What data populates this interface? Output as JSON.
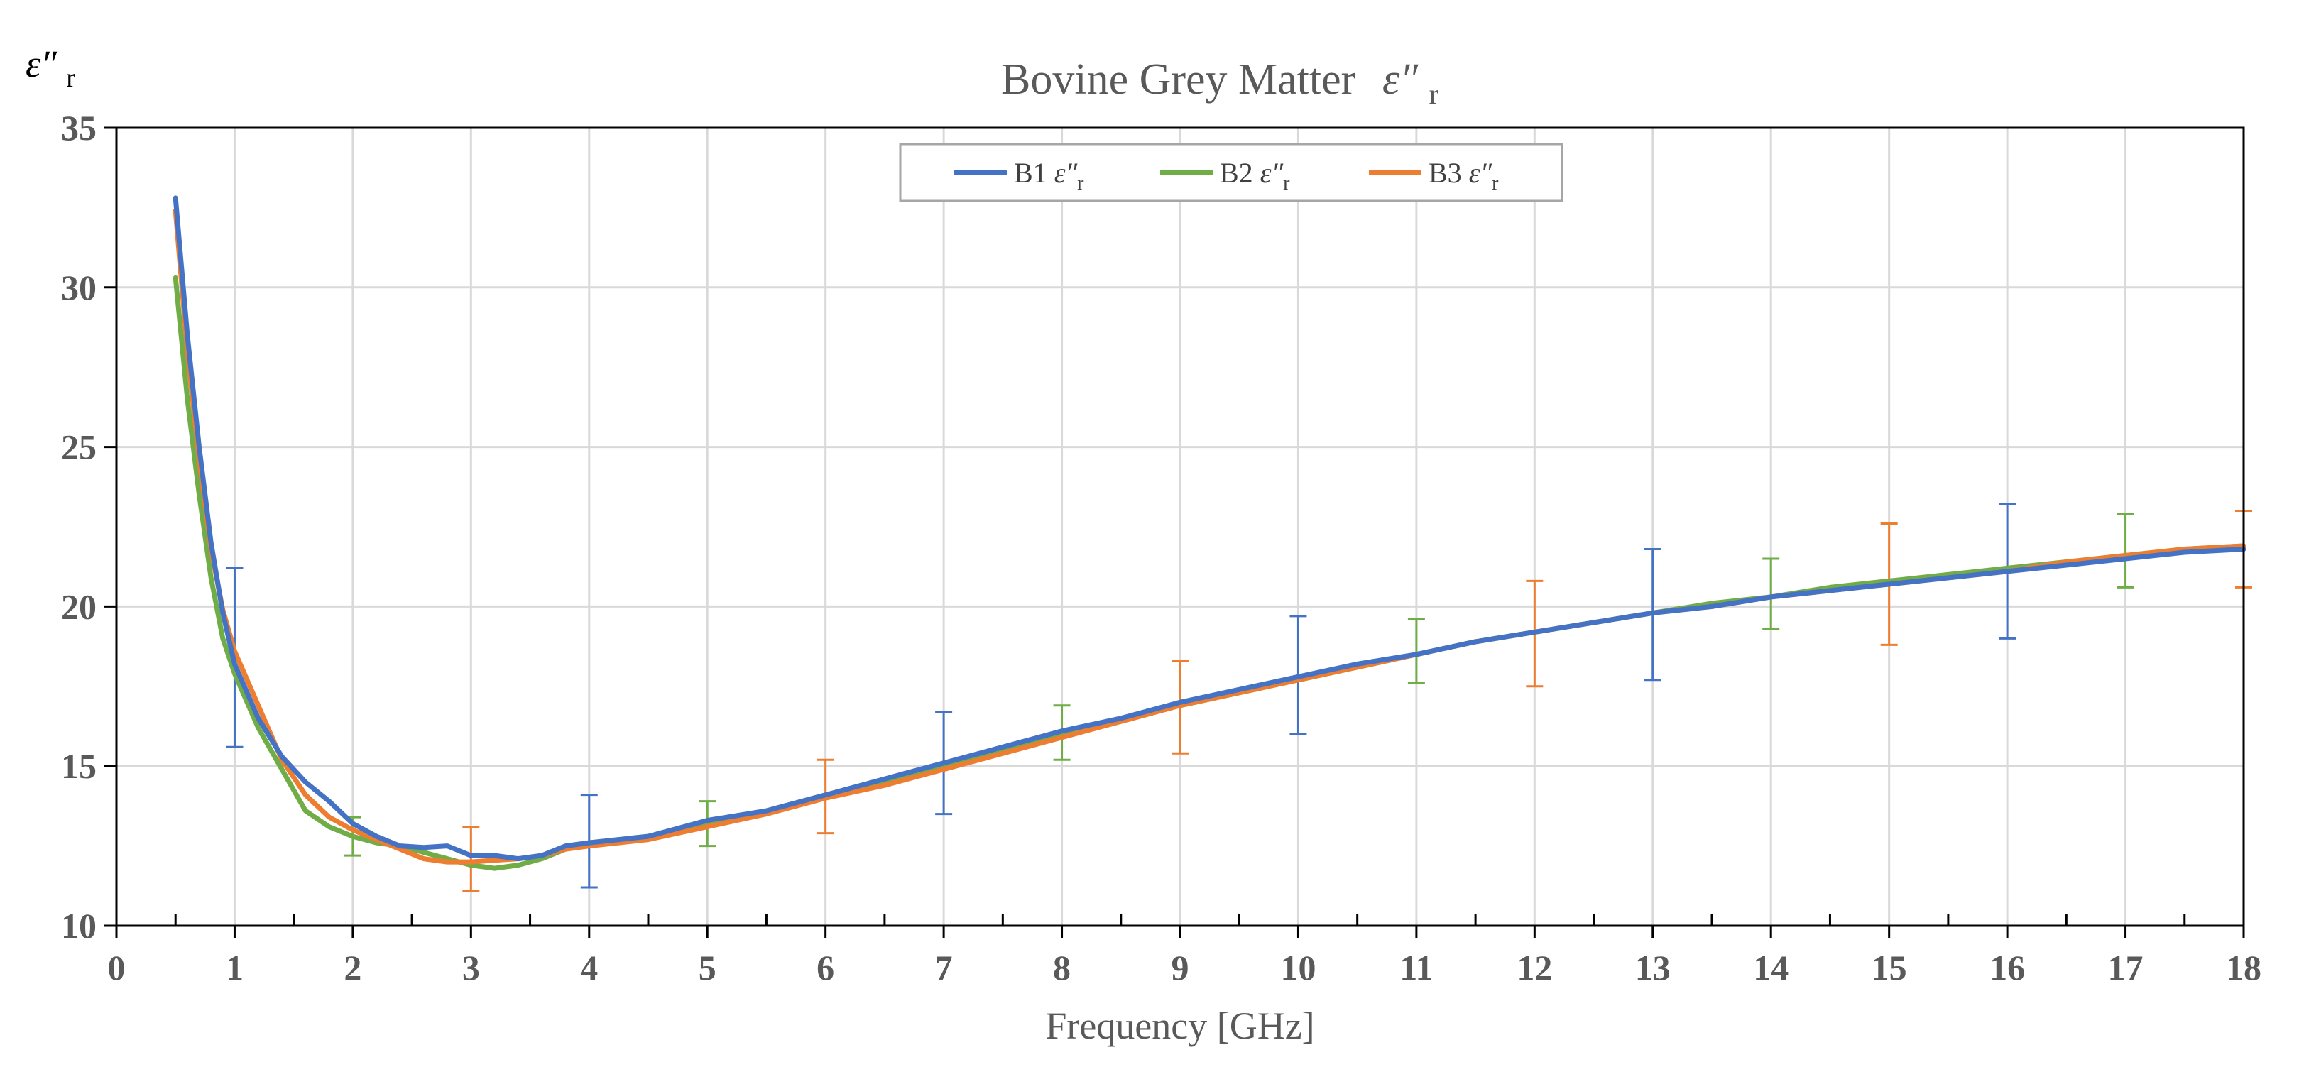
{
  "chart_data": {
    "type": "line",
    "title": "Bovine Grey Matter",
    "title_symbol": "ε″",
    "title_subscript": "r",
    "ylabel_symbol": "ε″",
    "ylabel_subscript": "r",
    "xlabel": "Frequency [GHz]",
    "xlim": [
      0,
      18
    ],
    "ylim": [
      10,
      35
    ],
    "x_ticks": [
      0,
      1,
      2,
      3,
      4,
      5,
      6,
      7,
      8,
      9,
      10,
      11,
      12,
      13,
      14,
      15,
      16,
      17,
      18
    ],
    "y_ticks": [
      10,
      15,
      20,
      25,
      30,
      35
    ],
    "x_minor_step": 0.5,
    "grid": true,
    "legend_position": "top-center",
    "series": [
      {
        "name": "B1 ε″r",
        "legend_label": "B1",
        "color": "#4472C4",
        "points": [
          [
            0.5,
            32.8
          ],
          [
            0.6,
            28.5
          ],
          [
            0.7,
            25.0
          ],
          [
            0.8,
            22.0
          ],
          [
            0.9,
            19.8
          ],
          [
            1.0,
            18.2
          ],
          [
            1.2,
            16.5
          ],
          [
            1.4,
            15.3
          ],
          [
            1.6,
            14.5
          ],
          [
            1.8,
            13.9
          ],
          [
            2.0,
            13.2
          ],
          [
            2.2,
            12.8
          ],
          [
            2.4,
            12.5
          ],
          [
            2.6,
            12.45
          ],
          [
            2.8,
            12.5
          ],
          [
            3.0,
            12.2
          ],
          [
            3.2,
            12.2
          ],
          [
            3.4,
            12.1
          ],
          [
            3.6,
            12.2
          ],
          [
            3.8,
            12.5
          ],
          [
            4.0,
            12.6
          ],
          [
            4.5,
            12.8
          ],
          [
            5.0,
            13.3
          ],
          [
            5.5,
            13.6
          ],
          [
            6.0,
            14.1
          ],
          [
            6.5,
            14.6
          ],
          [
            7.0,
            15.1
          ],
          [
            7.5,
            15.6
          ],
          [
            8.0,
            16.1
          ],
          [
            8.5,
            16.5
          ],
          [
            9.0,
            17.0
          ],
          [
            9.5,
            17.4
          ],
          [
            10.0,
            17.8
          ],
          [
            10.5,
            18.2
          ],
          [
            11.0,
            18.5
          ],
          [
            11.5,
            18.9
          ],
          [
            12.0,
            19.2
          ],
          [
            12.5,
            19.5
          ],
          [
            13.0,
            19.8
          ],
          [
            13.5,
            20.0
          ],
          [
            14.0,
            20.3
          ],
          [
            14.5,
            20.5
          ],
          [
            15.0,
            20.7
          ],
          [
            15.5,
            20.9
          ],
          [
            16.0,
            21.1
          ],
          [
            16.5,
            21.3
          ],
          [
            17.0,
            21.5
          ],
          [
            17.5,
            21.7
          ],
          [
            18.0,
            21.8
          ]
        ],
        "error_bars": [
          {
            "x": 1,
            "low": 15.6,
            "high": 21.2
          },
          {
            "x": 4,
            "low": 11.2,
            "high": 14.1
          },
          {
            "x": 7,
            "low": 13.5,
            "high": 16.7
          },
          {
            "x": 10,
            "low": 16.0,
            "high": 19.7
          },
          {
            "x": 13,
            "low": 17.7,
            "high": 21.8
          },
          {
            "x": 16,
            "low": 19.0,
            "high": 23.2
          }
        ]
      },
      {
        "name": "B2 ε″r",
        "legend_label": "B2",
        "color": "#70AD47",
        "points": [
          [
            0.5,
            30.3
          ],
          [
            0.6,
            26.5
          ],
          [
            0.7,
            23.5
          ],
          [
            0.8,
            20.9
          ],
          [
            0.9,
            19.0
          ],
          [
            1.0,
            17.9
          ],
          [
            1.2,
            16.2
          ],
          [
            1.4,
            14.9
          ],
          [
            1.6,
            13.6
          ],
          [
            1.8,
            13.1
          ],
          [
            2.0,
            12.8
          ],
          [
            2.2,
            12.6
          ],
          [
            2.4,
            12.5
          ],
          [
            2.6,
            12.3
          ],
          [
            2.8,
            12.1
          ],
          [
            3.0,
            11.9
          ],
          [
            3.2,
            11.8
          ],
          [
            3.4,
            11.9
          ],
          [
            3.6,
            12.1
          ],
          [
            3.8,
            12.4
          ],
          [
            4.0,
            12.6
          ],
          [
            4.5,
            12.8
          ],
          [
            5.0,
            13.2
          ],
          [
            5.5,
            13.6
          ],
          [
            6.0,
            14.1
          ],
          [
            6.5,
            14.5
          ],
          [
            7.0,
            15.0
          ],
          [
            7.5,
            15.5
          ],
          [
            8.0,
            16.0
          ],
          [
            8.5,
            16.5
          ],
          [
            9.0,
            16.9
          ],
          [
            9.5,
            17.3
          ],
          [
            10.0,
            17.7
          ],
          [
            10.5,
            18.1
          ],
          [
            11.0,
            18.5
          ],
          [
            11.5,
            18.9
          ],
          [
            12.0,
            19.2
          ],
          [
            12.5,
            19.5
          ],
          [
            13.0,
            19.8
          ],
          [
            13.5,
            20.1
          ],
          [
            14.0,
            20.3
          ],
          [
            14.5,
            20.6
          ],
          [
            15.0,
            20.8
          ],
          [
            15.5,
            21.0
          ],
          [
            16.0,
            21.2
          ],
          [
            16.5,
            21.4
          ],
          [
            17.0,
            21.6
          ],
          [
            17.5,
            21.8
          ],
          [
            18.0,
            21.9
          ]
        ],
        "error_bars": [
          {
            "x": 2,
            "low": 12.2,
            "high": 13.4
          },
          {
            "x": 5,
            "low": 12.5,
            "high": 13.9
          },
          {
            "x": 8,
            "low": 15.2,
            "high": 16.9
          },
          {
            "x": 11,
            "low": 17.6,
            "high": 19.6
          },
          {
            "x": 14,
            "low": 19.3,
            "high": 21.5
          },
          {
            "x": 17,
            "low": 20.6,
            "high": 22.9
          }
        ]
      },
      {
        "name": "B3 ε″r",
        "legend_label": "B3",
        "color": "#ED7D31",
        "points": [
          [
            0.5,
            32.4
          ],
          [
            0.6,
            28.0
          ],
          [
            0.7,
            24.6
          ],
          [
            0.8,
            21.8
          ],
          [
            0.9,
            19.9
          ],
          [
            1.0,
            18.6
          ],
          [
            1.2,
            16.9
          ],
          [
            1.4,
            15.2
          ],
          [
            1.6,
            14.1
          ],
          [
            1.8,
            13.4
          ],
          [
            2.0,
            13.0
          ],
          [
            2.2,
            12.7
          ],
          [
            2.4,
            12.4
          ],
          [
            2.6,
            12.1
          ],
          [
            2.8,
            12.0
          ],
          [
            3.0,
            12.0
          ],
          [
            3.2,
            12.05
          ],
          [
            3.4,
            12.1
          ],
          [
            3.6,
            12.2
          ],
          [
            3.8,
            12.4
          ],
          [
            4.0,
            12.5
          ],
          [
            4.5,
            12.7
          ],
          [
            5.0,
            13.1
          ],
          [
            5.5,
            13.5
          ],
          [
            6.0,
            14.0
          ],
          [
            6.5,
            14.4
          ],
          [
            7.0,
            14.9
          ],
          [
            7.5,
            15.4
          ],
          [
            8.0,
            15.9
          ],
          [
            8.5,
            16.4
          ],
          [
            9.0,
            16.9
          ],
          [
            9.5,
            17.3
          ],
          [
            10.0,
            17.7
          ],
          [
            10.5,
            18.1
          ],
          [
            11.0,
            18.5
          ],
          [
            11.5,
            18.9
          ],
          [
            12.0,
            19.2
          ],
          [
            12.5,
            19.5
          ],
          [
            13.0,
            19.8
          ],
          [
            13.5,
            20.0
          ],
          [
            14.0,
            20.3
          ],
          [
            14.5,
            20.5
          ],
          [
            15.0,
            20.7
          ],
          [
            15.5,
            20.9
          ],
          [
            16.0,
            21.1
          ],
          [
            16.5,
            21.4
          ],
          [
            17.0,
            21.6
          ],
          [
            17.5,
            21.8
          ],
          [
            18.0,
            21.9
          ]
        ],
        "error_bars": [
          {
            "x": 3,
            "low": 11.1,
            "high": 13.1
          },
          {
            "x": 6,
            "low": 12.9,
            "high": 15.2
          },
          {
            "x": 9,
            "low": 15.4,
            "high": 18.3
          },
          {
            "x": 12,
            "low": 17.5,
            "high": 20.8
          },
          {
            "x": 15,
            "low": 18.8,
            "high": 22.6
          },
          {
            "x": 18,
            "low": 20.6,
            "high": 23.0
          }
        ]
      }
    ]
  }
}
